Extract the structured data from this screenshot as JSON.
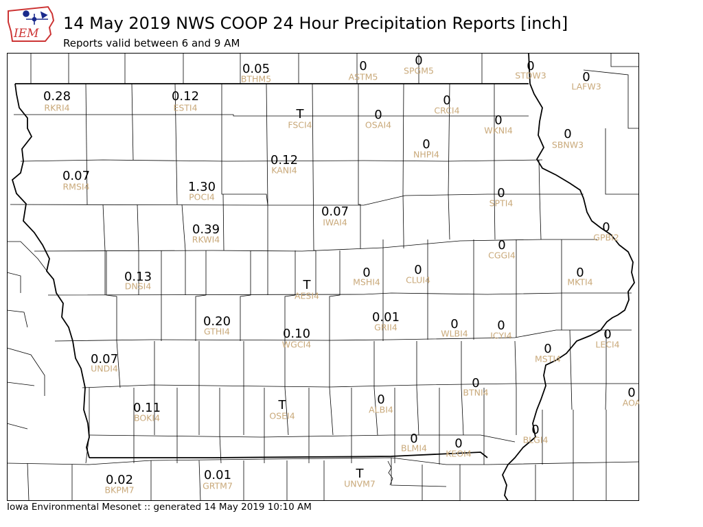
{
  "title": "14 May 2019 NWS COOP 24 Hour Precipitation Reports [inch]",
  "subtitle": "Reports valid between 6 and 9 AM",
  "footer": "Iowa Environmental Mesonet :: generated 14 May 2019 10:10 AM",
  "logo": {
    "text": "IEM",
    "icon": "iem-iowa-logo-icon"
  },
  "colors": {
    "value": "#000000",
    "station": "#c9a97a",
    "logo_red": "#cc3333",
    "logo_blue": "#1a2a8c"
  },
  "stations": [
    {
      "id": "BTHM5",
      "value": "0.05"
    },
    {
      "id": "ASTM5",
      "value": "0"
    },
    {
      "id": "SPGM5",
      "value": "0"
    },
    {
      "id": "STDW3",
      "value": "0"
    },
    {
      "id": "LAFW3",
      "value": "0"
    },
    {
      "id": "RKRI4",
      "value": "0.28"
    },
    {
      "id": "ESTI4",
      "value": "0.12"
    },
    {
      "id": "FSCI4",
      "value": "T"
    },
    {
      "id": "OSAI4",
      "value": "0"
    },
    {
      "id": "CRCI4",
      "value": "0"
    },
    {
      "id": "WKNI4",
      "value": "0"
    },
    {
      "id": "SBNW3",
      "value": "0"
    },
    {
      "id": "NHPI4",
      "value": "0"
    },
    {
      "id": "KANI4",
      "value": "0.12"
    },
    {
      "id": "RMSI4",
      "value": "0.07"
    },
    {
      "id": "POCI4",
      "value": "1.30"
    },
    {
      "id": "SPTI4",
      "value": "0"
    },
    {
      "id": "IWAI4",
      "value": "0.07"
    },
    {
      "id": "RKWI4",
      "value": "0.39"
    },
    {
      "id": "GPBI2",
      "value": "0"
    },
    {
      "id": "CGGI4",
      "value": "0"
    },
    {
      "id": "MSHI4",
      "value": "0"
    },
    {
      "id": "CLUI4",
      "value": "0"
    },
    {
      "id": "MKTI4",
      "value": "0"
    },
    {
      "id": "DNSI4",
      "value": "0.13"
    },
    {
      "id": "AESI4",
      "value": "T"
    },
    {
      "id": "GRII4",
      "value": "0.01"
    },
    {
      "id": "WLBI4",
      "value": "0"
    },
    {
      "id": "ICYI4",
      "value": "0"
    },
    {
      "id": "GTHI4",
      "value": "0.20"
    },
    {
      "id": "WGCI4",
      "value": "0.10"
    },
    {
      "id": "LECI4",
      "value": "0"
    },
    {
      "id": "MSTI4",
      "value": "0"
    },
    {
      "id": "UNDI4",
      "value": "0.07"
    },
    {
      "id": "BTNI4",
      "value": "0"
    },
    {
      "id": "AOA",
      "value": "0"
    },
    {
      "id": "BOKI4",
      "value": "0.11"
    },
    {
      "id": "OSEI4",
      "value": "T"
    },
    {
      "id": "ALBI4",
      "value": "0"
    },
    {
      "id": "BLGI4",
      "value": "0"
    },
    {
      "id": "BLMI4",
      "value": "0"
    },
    {
      "id": "KEOI4",
      "value": "0"
    },
    {
      "id": "BKPM7",
      "value": "0.02"
    },
    {
      "id": "GRTM7",
      "value": "0.01"
    },
    {
      "id": "UNVM7",
      "value": "T"
    }
  ]
}
